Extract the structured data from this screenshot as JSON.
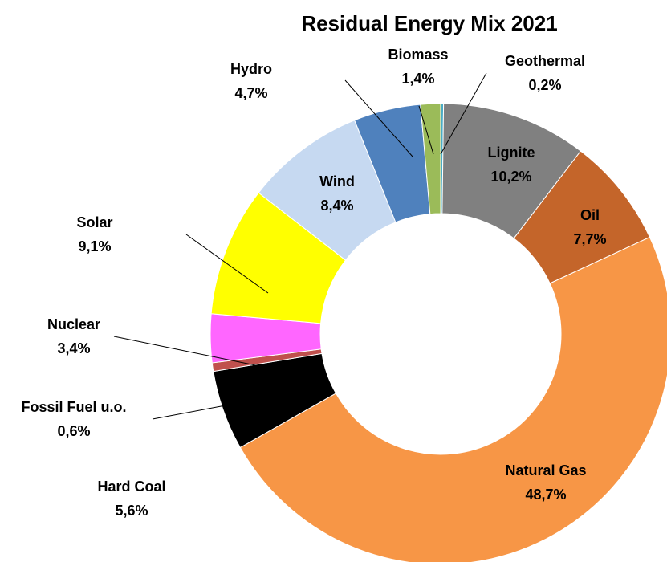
{
  "chart_data": {
    "type": "pie",
    "variant": "donut",
    "title": "Residual Energy Mix 2021",
    "start": "12 o'clock, clockwise",
    "slices": [
      {
        "name": "Geothermal",
        "label": "0,2%",
        "value": 0.2,
        "color": "#4bacc6"
      },
      {
        "name": "Lignite",
        "label": "10,2%",
        "value": 10.2,
        "color": "#808080"
      },
      {
        "name": "Oil",
        "label": "7,7%",
        "value": 7.7,
        "color": "#c4652a"
      },
      {
        "name": "Natural Gas",
        "label": "48,7%",
        "value": 48.7,
        "color": "#f79646"
      },
      {
        "name": "Hard Coal",
        "label": "5,6%",
        "value": 5.6,
        "color": "#000000"
      },
      {
        "name": "Fossil Fuel u.o.",
        "label": "0,6%",
        "value": 0.6,
        "color": "#c0504d"
      },
      {
        "name": "Nuclear",
        "label": "3,4%",
        "value": 3.4,
        "color": "#ff66ff"
      },
      {
        "name": "Solar",
        "label": "9,1%",
        "value": 9.1,
        "color": "#ffff00"
      },
      {
        "name": "Wind",
        "label": "8,4%",
        "value": 8.4,
        "color": "#c6d9f1"
      },
      {
        "name": "Hydro",
        "label": "4,7%",
        "value": 4.7,
        "color": "#4f81bd"
      },
      {
        "name": "Biomass",
        "label": "1,4%",
        "value": 1.4,
        "color": "#9bbb59"
      }
    ]
  }
}
